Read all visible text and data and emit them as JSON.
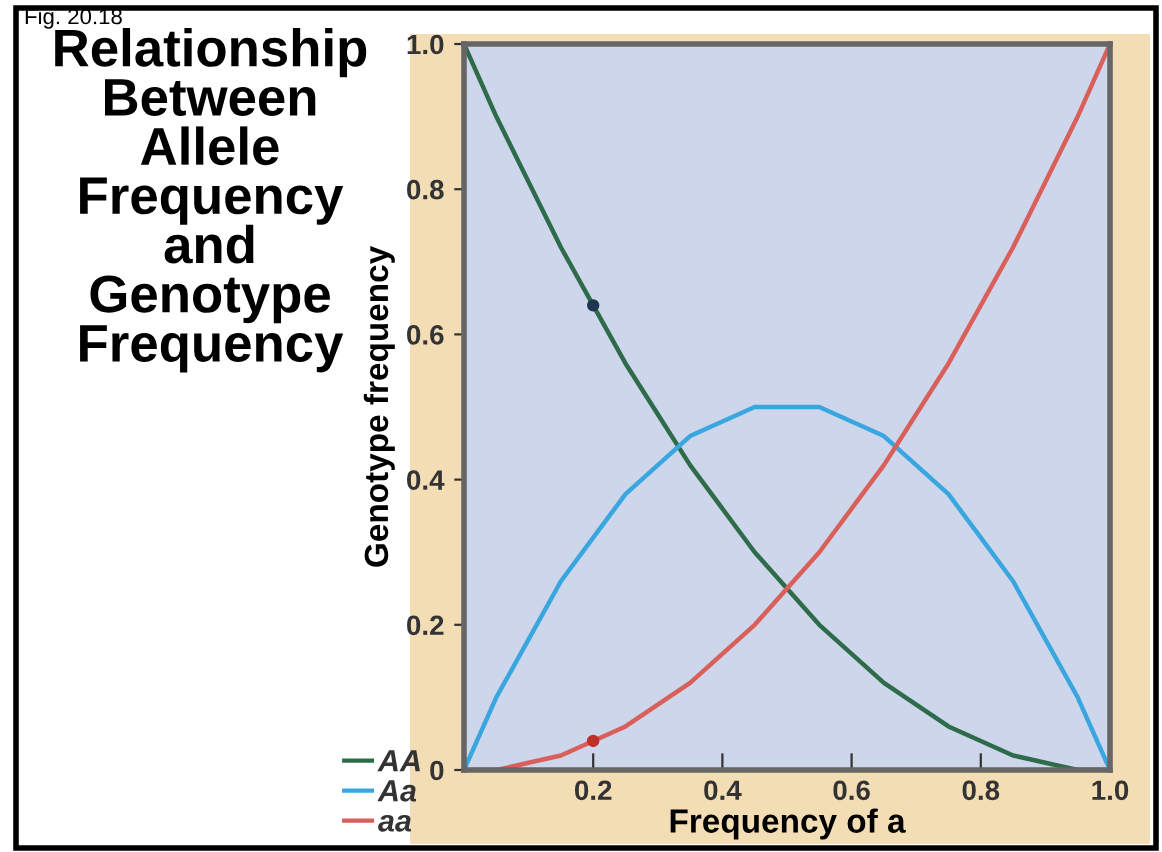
{
  "chart_data": {
    "type": "line",
    "title": "Relationship\nBetween\nAllele\nFrequency\nand\nGenotype\nFrequency",
    "xlabel": "Frequency of a",
    "ylabel": "Genotype frequency",
    "annotations": [
      "Fig. 20.18"
    ],
    "x": [
      0,
      0.05,
      0.1,
      0.15,
      0.2,
      0.25,
      0.3,
      0.35,
      0.4,
      0.45,
      0.5,
      0.55,
      0.6,
      0.65,
      0.7,
      0.75,
      0.8,
      0.85,
      0.9,
      0.95,
      1.0
    ],
    "series": [
      {
        "name": "AA",
        "color": "#2e6b4a",
        "values": [
          1,
          0.9,
          0.81,
          0.72,
          0.64,
          0.56,
          0.49,
          0.42,
          0.36,
          0.3,
          0.25,
          0.2,
          0.16,
          0.12,
          0.09,
          0.06,
          0.04,
          0.02,
          0.01,
          0,
          0
        ]
      },
      {
        "name": "Aa",
        "color": "#3aa6e0",
        "values": [
          0,
          0.1,
          0.18,
          0.26,
          0.32,
          0.38,
          0.42,
          0.46,
          0.48,
          0.5,
          0.5,
          0.5,
          0.48,
          0.46,
          0.42,
          0.38,
          0.32,
          0.26,
          0.18,
          0.1,
          0
        ]
      },
      {
        "name": "aa",
        "color": "#d9605a",
        "values": [
          0,
          0,
          0.01,
          0.02,
          0.04,
          0.06,
          0.09,
          0.12,
          0.16,
          0.2,
          0.25,
          0.3,
          0.36,
          0.42,
          0.49,
          0.56,
          0.64,
          0.72,
          0.81,
          0.9,
          1
        ]
      },
      {
        "type": "scatter",
        "marker": "circle",
        "color": "#1f3550",
        "x": [
          0.2
        ],
        "values": [
          0.64
        ]
      },
      {
        "type": "scatter",
        "marker": "circle",
        "color": "#c0302a",
        "x": [
          0.2
        ],
        "values": [
          0.04
        ]
      }
    ],
    "xlim": [
      0,
      1
    ],
    "ylim": [
      0,
      1
    ],
    "xticks": [
      0.2,
      0.4,
      0.6,
      0.8,
      {
        "value": 1,
        "label": "1.0"
      }
    ],
    "yticks": [
      0,
      0.2,
      0.4,
      0.6,
      0.8,
      {
        "value": 1,
        "label": "1.0"
      }
    ],
    "grid": false,
    "legend": "bottom left",
    "marker": "none",
    "line_style": "solid"
  }
}
